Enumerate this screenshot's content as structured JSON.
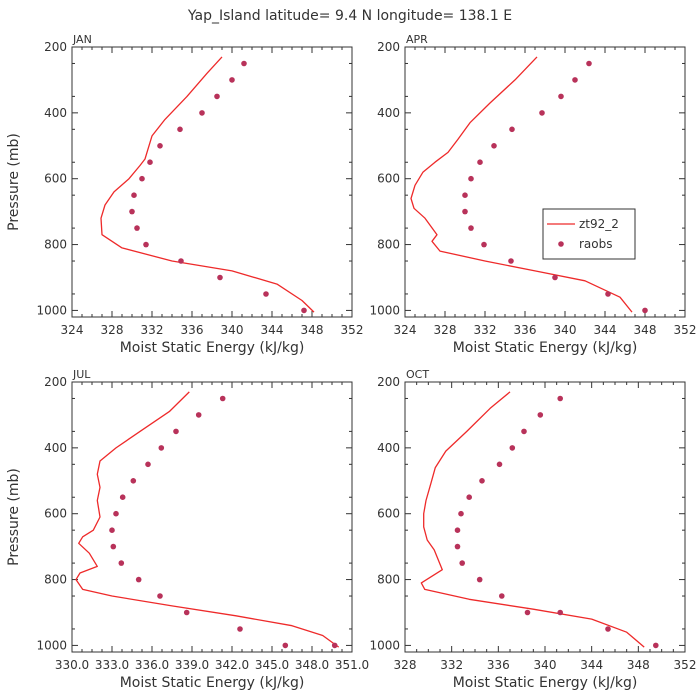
{
  "title": "Yap_Island   latitude= 9.4 N longitude= 138.1 E",
  "colors": {
    "model": "#ee2a2a",
    "obs": "#b8325a",
    "axis": "#333333"
  },
  "legend": {
    "model_label": "zt92_2",
    "obs_label": "raobs"
  },
  "chart_data": [
    {
      "type": "line",
      "title": "JAN",
      "xlabel": "Moist Static Energy (kJ/kg)",
      "ylabel": "Pressure (mb)",
      "xlim": [
        324,
        352
      ],
      "ylim": [
        1000,
        200
      ],
      "xticks": [
        "324",
        "328",
        "332",
        "336",
        "340",
        "344",
        "348",
        "352"
      ],
      "yticks": [
        "200",
        "400",
        "600",
        "800",
        "1000"
      ],
      "series": [
        {
          "name": "zt92_2",
          "kind": "line",
          "x": [
            339.0,
            337.5,
            335.5,
            333.3,
            332.0,
            331.6,
            331.3,
            330.8,
            329.7,
            328.2,
            327.3,
            326.9,
            327.0,
            329.0,
            334.0,
            340.0,
            344.5,
            347.0,
            348.2
          ],
          "y": [
            230,
            280,
            350,
            420,
            470,
            510,
            540,
            560,
            600,
            640,
            680,
            720,
            770,
            810,
            850,
            880,
            920,
            970,
            1005
          ]
        },
        {
          "name": "raobs",
          "kind": "scatter",
          "x": [
            341.2,
            340.0,
            338.5,
            337.0,
            334.8,
            332.8,
            331.8,
            331.0,
            330.2,
            330.0,
            330.5,
            331.4,
            334.9,
            338.8,
            343.4,
            347.2
          ],
          "y": [
            250,
            300,
            350,
            400,
            450,
            500,
            550,
            600,
            650,
            700,
            750,
            800,
            850,
            900,
            950,
            1000
          ]
        }
      ]
    },
    {
      "type": "line",
      "title": "APR",
      "xlabel": "Moist Static Energy (kJ/kg)",
      "ylabel": "Pressure (mb)",
      "xlim": [
        324,
        352
      ],
      "ylim": [
        1000,
        200
      ],
      "xticks": [
        "324",
        "328",
        "332",
        "336",
        "340",
        "344",
        "348",
        "352"
      ],
      "yticks": [
        "200",
        "400",
        "600",
        "800",
        "1000"
      ],
      "series": [
        {
          "name": "zt92_2",
          "kind": "line",
          "x": [
            337.2,
            335.0,
            332.5,
            330.5,
            329.3,
            328.3,
            327.0,
            325.8,
            325.0,
            324.6,
            324.9,
            326.0,
            327.2,
            326.7,
            327.5,
            332.0,
            337.0,
            342.0,
            345.5,
            346.7
          ],
          "y": [
            230,
            300,
            370,
            430,
            480,
            520,
            550,
            580,
            620,
            660,
            690,
            720,
            770,
            790,
            820,
            850,
            880,
            910,
            960,
            1005
          ]
        },
        {
          "name": "raobs",
          "kind": "scatter",
          "x": [
            342.4,
            341.0,
            339.6,
            337.7,
            334.7,
            332.9,
            331.5,
            330.6,
            330.0,
            330.0,
            330.6,
            331.9,
            334.6,
            339.0,
            344.3,
            348.0
          ],
          "y": [
            250,
            300,
            350,
            400,
            450,
            500,
            550,
            600,
            650,
            700,
            750,
            800,
            850,
            900,
            950,
            1000
          ]
        }
      ]
    },
    {
      "type": "line",
      "title": "JUL",
      "xlabel": "Moist Static Energy (kJ/kg)",
      "ylabel": "Pressure (mb)",
      "xlim": [
        330.0,
        351.0
      ],
      "ylim": [
        1000,
        200
      ],
      "xticks": [
        "330.0",
        "333.0",
        "336.0",
        "339.0",
        "342.0",
        "345.0",
        "348.0",
        "351.0"
      ],
      "yticks": [
        "200",
        "400",
        "600",
        "800",
        "1000"
      ],
      "series": [
        {
          "name": "zt92_2",
          "kind": "line",
          "x": [
            338.8,
            337.3,
            335.1,
            333.3,
            332.1,
            331.9,
            332.1,
            331.9,
            332.1,
            331.6,
            330.8,
            330.5,
            331.3,
            331.9,
            330.6,
            330.3,
            330.8,
            333.0,
            337.5,
            342.3,
            346.5,
            348.8,
            350.0
          ],
          "y": [
            230,
            290,
            350,
            400,
            440,
            480,
            520,
            560,
            610,
            650,
            670,
            690,
            720,
            760,
            780,
            800,
            830,
            850,
            880,
            910,
            940,
            970,
            1005
          ]
        },
        {
          "name": "raobs",
          "kind": "scatter",
          "x": [
            341.3,
            339.5,
            337.8,
            336.7,
            335.7,
            334.6,
            333.8,
            333.3,
            333.0,
            333.1,
            333.7,
            335.0,
            336.6,
            338.6,
            342.6,
            346.0,
            349.7
          ],
          "y": [
            250,
            300,
            350,
            400,
            450,
            500,
            550,
            600,
            650,
            700,
            750,
            800,
            850,
            900,
            950,
            1000,
            1000
          ]
        }
      ]
    },
    {
      "type": "line",
      "title": "OCT",
      "xlabel": "Moist Static Energy (kJ/kg)",
      "ylabel": "Pressure (mb)",
      "xlim": [
        328,
        352
      ],
      "ylim": [
        1000,
        200
      ],
      "xticks": [
        "328",
        "332",
        "336",
        "340",
        "344",
        "348",
        "352"
      ],
      "yticks": [
        "200",
        "400",
        "600",
        "800",
        "1000"
      ],
      "series": [
        {
          "name": "zt92_2",
          "kind": "line",
          "x": [
            337.0,
            335.3,
            333.3,
            331.5,
            330.6,
            330.2,
            329.8,
            329.6,
            329.6,
            329.9,
            330.5,
            331.2,
            330.3,
            329.4,
            329.7,
            333.5,
            339.0,
            344.0,
            347.0,
            348.5
          ],
          "y": [
            230,
            280,
            350,
            410,
            460,
            510,
            560,
            600,
            640,
            680,
            710,
            770,
            790,
            810,
            830,
            860,
            890,
            920,
            960,
            1005
          ]
        },
        {
          "name": "raobs",
          "kind": "scatter",
          "x": [
            341.3,
            339.6,
            338.2,
            337.2,
            336.1,
            334.6,
            333.5,
            332.8,
            332.5,
            332.5,
            332.9,
            334.4,
            336.3,
            338.5,
            341.3,
            345.4,
            349.5
          ],
          "y": [
            250,
            300,
            350,
            400,
            450,
            500,
            550,
            600,
            650,
            700,
            750,
            800,
            850,
            900,
            900,
            950,
            1000
          ]
        }
      ]
    }
  ]
}
